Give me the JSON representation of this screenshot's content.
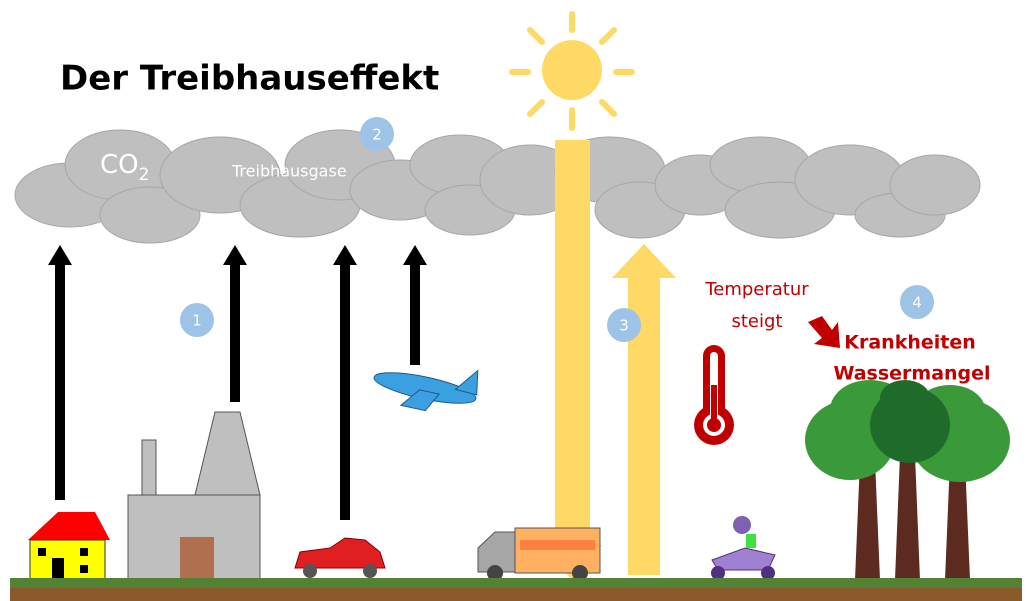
{
  "title": "Der Treibhauseffekt",
  "co2": {
    "text": "CO",
    "subscript": "2"
  },
  "gases_label": "Treibhausgase",
  "badges": [
    "1",
    "2",
    "3",
    "4"
  ],
  "temperature": [
    "Temperatur",
    "steigt"
  ],
  "consequences": [
    "Krankheiten",
    "Wassermangel"
  ]
}
